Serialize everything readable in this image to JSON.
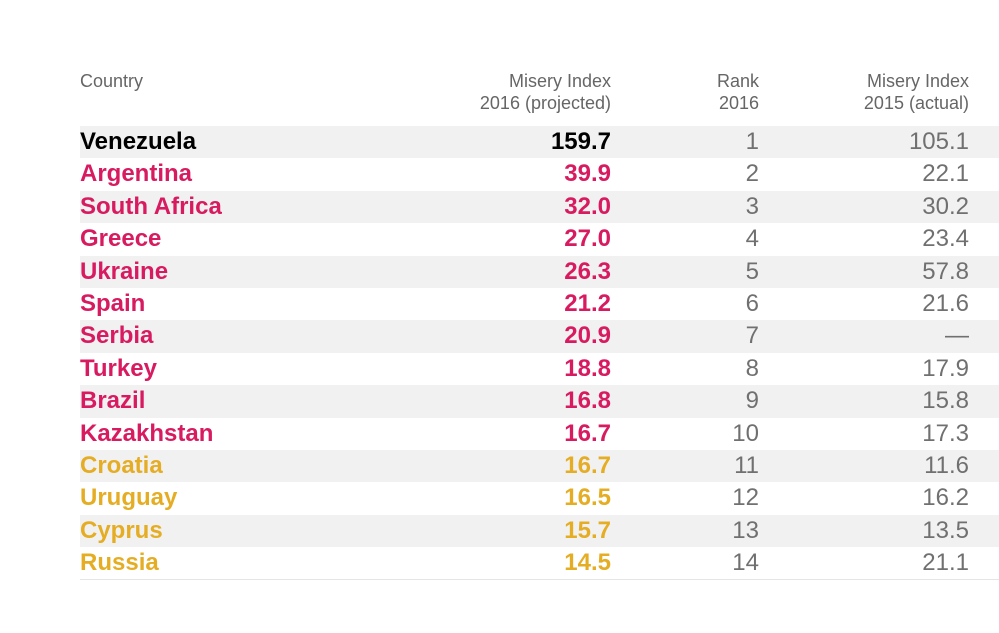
{
  "colors": {
    "highlight": "#000000",
    "high_misery": "#d81b60",
    "medium_misery": "#e5ad24",
    "muted": "#707070",
    "row_shade": "#f1f1f1"
  },
  "headers": {
    "country": "Country",
    "projected_2016": "Misery Index\n2016 (projected)",
    "rank_2016": "Rank\n2016",
    "actual_2015": "Misery Index\n2015 (actual)"
  },
  "chart_data": {
    "type": "table",
    "columns": [
      "Country",
      "Misery Index 2016 (projected)",
      "Rank 2016",
      "Misery Index 2015 (actual)"
    ],
    "rows": [
      {
        "country": "Venezuela",
        "projected_2016": "159.7",
        "rank_2016": "1",
        "actual_2015": "105.1",
        "tier": "highlight"
      },
      {
        "country": "Argentina",
        "projected_2016": "39.9",
        "rank_2016": "2",
        "actual_2015": "22.1",
        "tier": "high_misery"
      },
      {
        "country": "South Africa",
        "projected_2016": "32.0",
        "rank_2016": "3",
        "actual_2015": "30.2",
        "tier": "high_misery"
      },
      {
        "country": "Greece",
        "projected_2016": "27.0",
        "rank_2016": "4",
        "actual_2015": "23.4",
        "tier": "high_misery"
      },
      {
        "country": "Ukraine",
        "projected_2016": "26.3",
        "rank_2016": "5",
        "actual_2015": "57.8",
        "tier": "high_misery"
      },
      {
        "country": "Spain",
        "projected_2016": "21.2",
        "rank_2016": "6",
        "actual_2015": "21.6",
        "tier": "high_misery"
      },
      {
        "country": "Serbia",
        "projected_2016": "20.9",
        "rank_2016": "7",
        "actual_2015": "—",
        "tier": "high_misery"
      },
      {
        "country": "Turkey",
        "projected_2016": "18.8",
        "rank_2016": "8",
        "actual_2015": "17.9",
        "tier": "high_misery"
      },
      {
        "country": "Brazil",
        "projected_2016": "16.8",
        "rank_2016": "9",
        "actual_2015": "15.8",
        "tier": "high_misery"
      },
      {
        "country": "Kazakhstan",
        "projected_2016": "16.7",
        "rank_2016": "10",
        "actual_2015": "17.3",
        "tier": "high_misery"
      },
      {
        "country": "Croatia",
        "projected_2016": "16.7",
        "rank_2016": "11",
        "actual_2015": "11.6",
        "tier": "medium_misery"
      },
      {
        "country": "Uruguay",
        "projected_2016": "16.5",
        "rank_2016": "12",
        "actual_2015": "16.2",
        "tier": "medium_misery"
      },
      {
        "country": "Cyprus",
        "projected_2016": "15.7",
        "rank_2016": "13",
        "actual_2015": "13.5",
        "tier": "medium_misery"
      },
      {
        "country": "Russia",
        "projected_2016": "14.5",
        "rank_2016": "14",
        "actual_2015": "21.1",
        "tier": "medium_misery"
      }
    ]
  }
}
